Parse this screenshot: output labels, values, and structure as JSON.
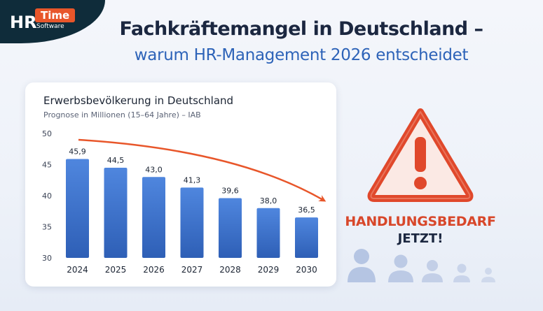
{
  "brand": {
    "logo_hr": "HR",
    "logo_time": "Time",
    "logo_software": "Software",
    "dark_color": "#0f2c3a",
    "accent_color": "#e8562a"
  },
  "header": {
    "title": "Fachkräftemangel in Deutschland –",
    "subtitle": "warum HR-Management 2026 entscheidet"
  },
  "chart_data": {
    "type": "bar",
    "title": "Erwerbsbevölkerung in Deutschland",
    "subtitle": "Prognose in Millionen (15–64 Jahre) – IAB",
    "categories": [
      "2024",
      "2025",
      "2026",
      "2027",
      "2028",
      "2029",
      "2030"
    ],
    "values": [
      45.9,
      44.5,
      43.0,
      41.3,
      39.6,
      38.0,
      36.5
    ],
    "value_labels": [
      "45,9",
      "44,5",
      "43,0",
      "41,3",
      "39,6",
      "38,0",
      "36,5"
    ],
    "ylim": [
      30,
      50
    ],
    "yticks": [
      30,
      35,
      40,
      45,
      50
    ],
    "xlabel": "",
    "ylabel": "",
    "grid": false,
    "bar_color": "#3a6fc9",
    "trend_arrow_color": "#e8562a"
  },
  "callout": {
    "line1": "HANDLUNGSBEDARF",
    "line2": "JETZT!",
    "warning_icon": "warning-triangle-icon",
    "warning_color": "#e0482b",
    "people_icon": "person-icon",
    "people_color": "#b9c8e4"
  }
}
